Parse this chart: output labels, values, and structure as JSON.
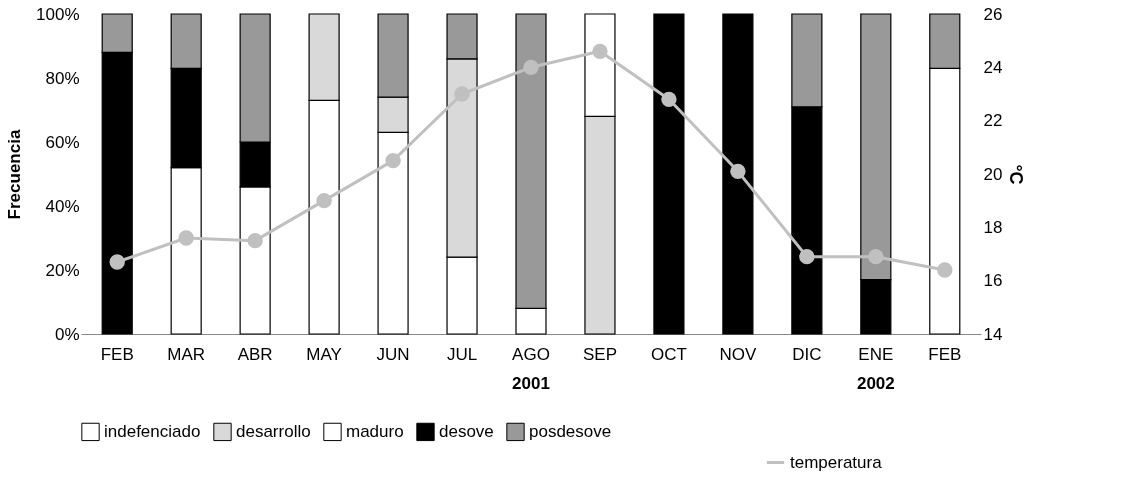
{
  "chart_data": {
    "type": "bar",
    "stacked": true,
    "ylabel": "Frecuencia",
    "y2label": "°C",
    "categories": [
      "FEB",
      "MAR",
      "ABR",
      "MAY",
      "JUN",
      "JUL",
      "AGO",
      "SEP",
      "OCT",
      "NOV",
      "DIC",
      "ENE",
      "FEB"
    ],
    "series": [
      {
        "name": "indefenciado",
        "color": "#ffffff",
        "values": [
          null,
          52,
          46,
          73,
          63,
          24,
          8,
          null,
          null,
          null,
          null,
          null,
          83
        ]
      },
      {
        "name": "desarrollo",
        "color": "#d9d9d9",
        "values": [
          null,
          null,
          null,
          27,
          11,
          62,
          null,
          68,
          null,
          null,
          null,
          null,
          null
        ]
      },
      {
        "name": "maduro",
        "color": "#ffffff",
        "values": [
          null,
          null,
          null,
          null,
          null,
          null,
          null,
          32,
          null,
          null,
          null,
          null,
          null
        ]
      },
      {
        "name": "desove",
        "color": "#000000",
        "values": [
          88,
          31,
          14,
          null,
          null,
          null,
          null,
          null,
          100,
          100,
          71,
          17,
          null
        ]
      },
      {
        "name": "posdesove",
        "color": "#999999",
        "values": [
          12,
          17,
          40,
          null,
          26,
          14,
          92,
          null,
          null,
          null,
          29,
          83,
          17
        ]
      },
      {
        "name": "temperatura",
        "type": "line",
        "axis": "y2",
        "color": "#c0c0c0",
        "marker": "circle",
        "values": [
          16.7,
          17.6,
          17.5,
          19.0,
          20.5,
          23.0,
          24.0,
          24.6,
          22.8,
          20.1,
          16.9,
          16.9,
          16.4
        ]
      }
    ],
    "ylim": [
      0,
      100
    ],
    "yticks": [
      {
        "value": 0,
        "label": "0%"
      },
      {
        "value": 20,
        "label": "20%"
      },
      {
        "value": 40,
        "label": "40%"
      },
      {
        "value": 60,
        "label": "60%"
      },
      {
        "value": 80,
        "label": "80%"
      },
      {
        "value": 100,
        "label": "100%"
      }
    ],
    "y2lim": [
      14,
      26
    ],
    "y2ticks": [
      14,
      16,
      18,
      20,
      22,
      24,
      26
    ],
    "grid": false,
    "legend": "bottom",
    "annotations": [
      "2001",
      "2002"
    ]
  }
}
